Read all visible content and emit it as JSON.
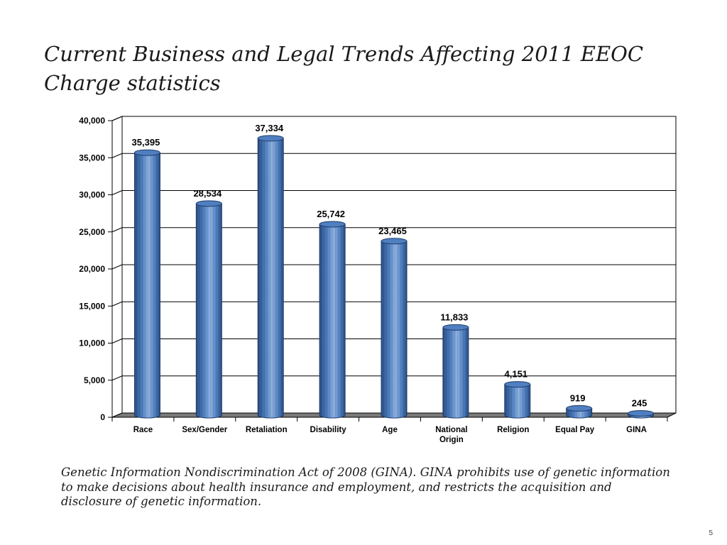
{
  "slide": {
    "title": "Current Business and Legal Trends Affecting 2011 EEOC Charge statistics",
    "footnote": "Genetic Information Nondiscrimination Act of 2008 (GINA). GINA prohibits use of genetic information to make decisions about health insurance and employment, and restricts the acquisition and disclosure of genetic information.",
    "page_number": "5"
  },
  "chart_data": {
    "type": "bar",
    "categories": [
      "Race",
      "Sex/Gender",
      "Retaliation",
      "Disability",
      "Age",
      "National Origin",
      "Religion",
      "Equal Pay",
      "GINA"
    ],
    "values": [
      35395,
      28534,
      37334,
      25742,
      23465,
      11833,
      4151,
      919,
      245
    ],
    "data_labels": [
      "35,395",
      "28,534",
      "37,334",
      "25,742",
      "23,465",
      "11,833",
      "4,151",
      "919",
      "245"
    ],
    "title": "",
    "xlabel": "",
    "ylabel": "",
    "ylim": [
      0,
      40000
    ],
    "yticks": [
      0,
      5000,
      10000,
      15000,
      20000,
      25000,
      30000,
      35000,
      40000
    ],
    "ytick_labels": [
      "0",
      "5,000",
      "10,000",
      "15,000",
      "20,000",
      "25,000",
      "30,000",
      "35,000",
      "40,000"
    ],
    "grid": true,
    "legend": "none",
    "style": "3d-cylinder",
    "colors": {
      "bar_fill": "#4f7fc0",
      "bar_dark": "#2a4f86",
      "bar_light": "#8fb2e2",
      "floor": "#7a7a7a",
      "grid": "#000000"
    }
  }
}
